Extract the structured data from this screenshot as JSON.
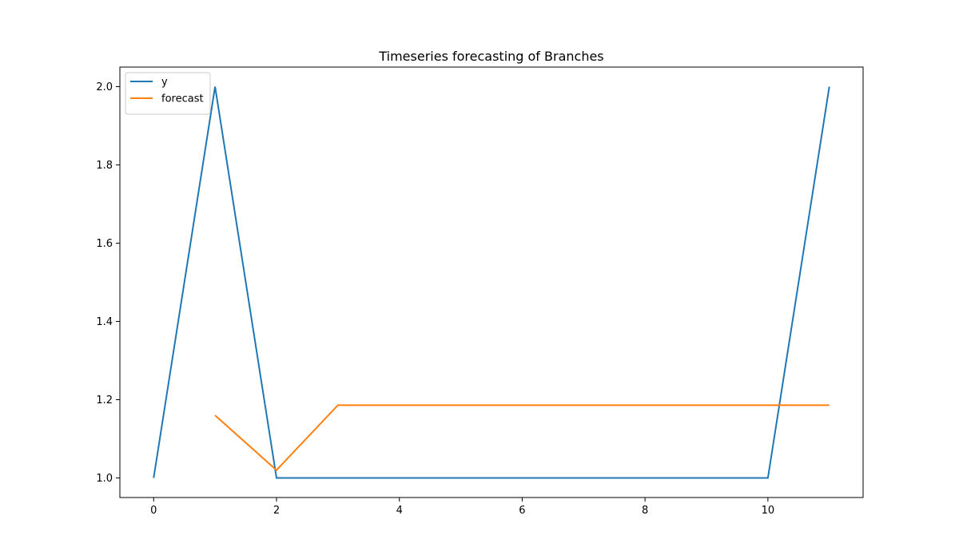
{
  "chart_data": {
    "type": "line",
    "title": "Timeseries forecasting of Branches",
    "xlabel": "",
    "ylabel": "",
    "xlim": [
      -0.55,
      11.55
    ],
    "ylim": [
      0.95,
      2.05
    ],
    "xticks": [
      0,
      2,
      4,
      6,
      8,
      10
    ],
    "yticks": [
      1.0,
      1.2,
      1.4,
      1.6,
      1.8,
      2.0
    ],
    "xtick_labels": [
      "0",
      "2",
      "4",
      "6",
      "8",
      "10"
    ],
    "ytick_labels": [
      "1.0",
      "1.2",
      "1.4",
      "1.6",
      "1.8",
      "2.0"
    ],
    "grid": false,
    "legend_position": "top-left",
    "series": [
      {
        "name": "y",
        "color": "#1f77b4",
        "x": [
          0,
          1,
          2,
          3,
          4,
          5,
          6,
          7,
          8,
          9,
          10,
          11
        ],
        "y": [
          1.0,
          2.0,
          1.0,
          1.0,
          1.0,
          1.0,
          1.0,
          1.0,
          1.0,
          1.0,
          1.0,
          2.0
        ]
      },
      {
        "name": "forecast",
        "color": "#ff7f0e",
        "x": [
          1,
          2,
          3,
          4,
          5,
          6,
          7,
          8,
          9,
          10,
          11
        ],
        "y": [
          1.16,
          1.02,
          1.186,
          1.186,
          1.186,
          1.186,
          1.186,
          1.186,
          1.186,
          1.186,
          1.186
        ]
      }
    ]
  }
}
